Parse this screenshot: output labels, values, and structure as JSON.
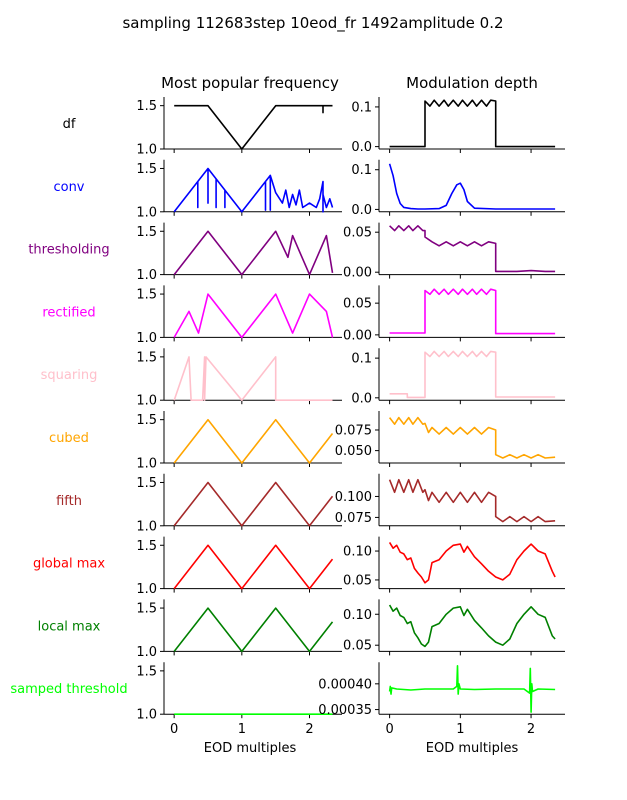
{
  "suptitle": "sampling 112683step 10eod_fr 1492amplitude 0.2",
  "col_titles": [
    "Most popular frequency",
    "Modulation depth"
  ],
  "xlabel": "EOD multiples",
  "chart_data": [
    {
      "type": "line",
      "row_label": "df",
      "color": "#000000",
      "left": {
        "ylim": [
          1.0,
          1.6
        ],
        "yticks": [
          "1.0",
          "1.5"
        ],
        "xlim": [
          -0.15,
          2.48
        ],
        "xticks": [
          "0",
          "1",
          "2"
        ],
        "x": [
          0,
          0.5,
          1.0,
          1.5,
          2.2,
          2.2,
          2.2,
          2.34
        ],
        "y": [
          1.5,
          1.5,
          1.0,
          1.5,
          1.5,
          1.42,
          1.5,
          1.5
        ]
      },
      "right": {
        "ylim": [
          -0.006,
          0.125
        ],
        "yticks": [
          "0.0",
          "0.1"
        ],
        "xlim": [
          -0.15,
          2.48
        ],
        "xticks": [
          "0",
          "1",
          "2"
        ],
        "x": [
          0,
          0.5,
          0.5,
          0.57,
          0.63,
          0.7,
          0.77,
          0.83,
          0.9,
          0.97,
          1.03,
          1.1,
          1.17,
          1.23,
          1.3,
          1.37,
          1.43,
          1.5,
          1.5,
          2.34
        ],
        "y": [
          0,
          0,
          0.115,
          0.102,
          0.117,
          0.102,
          0.117,
          0.102,
          0.117,
          0.102,
          0.117,
          0.102,
          0.117,
          0.102,
          0.117,
          0.102,
          0.117,
          0.115,
          0,
          0
        ]
      }
    },
    {
      "type": "line",
      "row_label": "conv",
      "color": "#0000ff",
      "left": {
        "ylim": [
          1.0,
          1.6
        ],
        "yticks": [
          "1.0",
          "1.5"
        ],
        "xlim": [
          -0.15,
          2.48
        ],
        "xticks": [
          "0",
          "1",
          "2"
        ],
        "x": [
          0,
          0.35,
          0.35,
          0.35,
          0.5,
          0.5,
          0.5,
          0.62,
          0.62,
          0.62,
          0.75,
          0.75,
          0.75,
          1.0,
          1.35,
          1.35,
          1.35,
          1.42,
          1.42,
          1.42,
          1.5,
          1.6,
          1.65,
          1.7,
          1.75,
          1.8,
          1.85,
          1.9,
          2.0,
          2.1,
          2.15,
          2.2,
          2.2,
          2.2,
          2.25,
          2.3,
          2.34
        ],
        "y": [
          1.0,
          1.35,
          1.05,
          1.35,
          1.5,
          1.1,
          1.5,
          1.38,
          1.05,
          1.38,
          1.25,
          1.05,
          1.25,
          1.0,
          1.35,
          1.02,
          1.35,
          1.42,
          1.02,
          1.42,
          1.22,
          1.1,
          1.25,
          1.05,
          1.2,
          1.08,
          1.25,
          1.05,
          1.1,
          1.05,
          1.15,
          1.35,
          1.0,
          1.2,
          1.05,
          1.15,
          1.05
        ]
      },
      "right": {
        "ylim": [
          -0.006,
          0.125
        ],
        "yticks": [
          "0.0",
          "0.1"
        ],
        "xlim": [
          -0.15,
          2.48
        ],
        "xticks": [
          "0",
          "1",
          "2"
        ],
        "x": [
          0,
          0.05,
          0.1,
          0.15,
          0.2,
          0.3,
          0.4,
          0.5,
          0.7,
          0.8,
          0.88,
          0.95,
          1.0,
          1.05,
          1.1,
          1.2,
          1.5,
          2.34
        ],
        "y": [
          0.115,
          0.085,
          0.04,
          0.015,
          0.005,
          0.002,
          0.001,
          0.001,
          0.002,
          0.01,
          0.04,
          0.062,
          0.066,
          0.05,
          0.02,
          0.003,
          0.001,
          0.001
        ]
      }
    },
    {
      "type": "line",
      "row_label": "thresholding",
      "color": "#800080",
      "left": {
        "ylim": [
          1.0,
          1.6
        ],
        "yticks": [
          "1.0",
          "1.5"
        ],
        "xlim": [
          -0.15,
          2.48
        ],
        "xticks": [
          "0",
          "1",
          "2"
        ],
        "x": [
          0,
          0.5,
          1.0,
          1.5,
          1.68,
          1.75,
          2.0,
          2.25,
          2.34
        ],
        "y": [
          1.0,
          1.5,
          1.0,
          1.5,
          1.2,
          1.45,
          1.0,
          1.45,
          1.02
        ]
      },
      "right": {
        "ylim": [
          -0.003,
          0.062
        ],
        "yticks": [
          "0.00",
          "0.05"
        ],
        "xlim": [
          -0.15,
          2.48
        ],
        "xticks": [
          "0",
          "1",
          "2"
        ],
        "x": [
          0,
          0.07,
          0.13,
          0.2,
          0.27,
          0.33,
          0.4,
          0.47,
          0.5,
          0.5,
          0.6,
          0.7,
          0.8,
          0.9,
          1.0,
          1.1,
          1.2,
          1.3,
          1.4,
          1.5,
          1.5,
          1.8,
          2.0,
          2.2,
          2.34
        ],
        "y": [
          0.058,
          0.052,
          0.058,
          0.052,
          0.058,
          0.052,
          0.058,
          0.052,
          0.052,
          0.044,
          0.038,
          0.033,
          0.038,
          0.033,
          0.038,
          0.033,
          0.038,
          0.033,
          0.038,
          0.036,
          0.001,
          0.001,
          0.002,
          0.001,
          0.001
        ]
      }
    },
    {
      "type": "line",
      "row_label": "rectified",
      "color": "#ff00ff",
      "left": {
        "ylim": [
          1.0,
          1.6
        ],
        "yticks": [
          "1.0",
          "1.5"
        ],
        "xlim": [
          -0.15,
          2.48
        ],
        "xticks": [
          "0",
          "1",
          "2"
        ],
        "x": [
          0,
          0.22,
          0.36,
          0.5,
          1.0,
          1.5,
          1.75,
          2.0,
          2.25,
          2.34
        ],
        "y": [
          1.0,
          1.3,
          1.05,
          1.5,
          1.0,
          1.5,
          1.05,
          1.5,
          1.3,
          1.0
        ]
      },
      "right": {
        "ylim": [
          -0.004,
          0.078
        ],
        "yticks": [
          "0.00",
          "0.05"
        ],
        "xlim": [
          -0.15,
          2.48
        ],
        "xticks": [
          "0",
          "1",
          "2"
        ],
        "x": [
          0,
          0.5,
          0.5,
          0.57,
          0.63,
          0.7,
          0.77,
          0.83,
          0.9,
          0.97,
          1.03,
          1.1,
          1.17,
          1.23,
          1.3,
          1.37,
          1.43,
          1.5,
          1.5,
          2.34
        ],
        "y": [
          0.003,
          0.003,
          0.07,
          0.064,
          0.072,
          0.064,
          0.072,
          0.064,
          0.072,
          0.064,
          0.072,
          0.064,
          0.072,
          0.064,
          0.072,
          0.064,
          0.072,
          0.07,
          0.002,
          0.002
        ]
      }
    },
    {
      "type": "line",
      "row_label": "squaring",
      "color": "#ffc0cb",
      "left": {
        "ylim": [
          1.0,
          1.6
        ],
        "yticks": [
          "1.0",
          "1.5"
        ],
        "xlim": [
          -0.15,
          2.48
        ],
        "xticks": [
          "0",
          "1",
          "2"
        ],
        "x": [
          0,
          0.22,
          0.25,
          0.25,
          0.42,
          0.45,
          0.45,
          0.47,
          0.47,
          1.0,
          1.5,
          1.5,
          2.34
        ],
        "y": [
          1.0,
          1.5,
          1.0,
          1.0,
          1.0,
          1.5,
          1.0,
          1.5,
          1.5,
          1.0,
          1.5,
          1.0,
          1.0
        ]
      },
      "right": {
        "ylim": [
          -0.006,
          0.125
        ],
        "yticks": [
          "0.0",
          "0.1"
        ],
        "xlim": [
          -0.15,
          2.48
        ],
        "xticks": [
          "0",
          "1",
          "2"
        ],
        "x": [
          0,
          0.25,
          0.25,
          0.5,
          0.5,
          0.57,
          0.63,
          0.7,
          0.77,
          0.83,
          0.9,
          0.97,
          1.03,
          1.1,
          1.17,
          1.23,
          1.3,
          1.37,
          1.43,
          1.5,
          1.5,
          2.34
        ],
        "y": [
          0.01,
          0.01,
          0.001,
          0.001,
          0.115,
          0.104,
          0.117,
          0.104,
          0.117,
          0.104,
          0.117,
          0.104,
          0.117,
          0.104,
          0.117,
          0.104,
          0.117,
          0.104,
          0.117,
          0.115,
          0.002,
          0.002
        ]
      }
    },
    {
      "type": "line",
      "row_label": "cubed",
      "color": "#ffa500",
      "left": {
        "ylim": [
          1.0,
          1.6
        ],
        "yticks": [
          "1.0",
          "1.5"
        ],
        "xlim": [
          -0.15,
          2.48
        ],
        "xticks": [
          "0",
          "1",
          "2"
        ],
        "x": [
          0,
          0.5,
          1.0,
          1.5,
          2.0,
          2.34
        ],
        "y": [
          1.0,
          1.5,
          1.0,
          1.5,
          1.0,
          1.34
        ]
      },
      "right": {
        "ylim": [
          0.035,
          0.098
        ],
        "yticks": [
          "0.050",
          "0.075"
        ],
        "xlim": [
          -0.15,
          2.48
        ],
        "xticks": [
          "0",
          "1",
          "2"
        ],
        "x": [
          0,
          0.07,
          0.13,
          0.2,
          0.27,
          0.33,
          0.4,
          0.47,
          0.5,
          0.55,
          0.6,
          0.7,
          0.8,
          0.9,
          1.0,
          1.1,
          1.2,
          1.3,
          1.4,
          1.5,
          1.5,
          1.6,
          1.7,
          1.8,
          1.9,
          2.0,
          2.1,
          2.2,
          2.34
        ],
        "y": [
          0.09,
          0.082,
          0.09,
          0.082,
          0.09,
          0.082,
          0.09,
          0.082,
          0.083,
          0.072,
          0.078,
          0.07,
          0.078,
          0.07,
          0.078,
          0.07,
          0.078,
          0.07,
          0.078,
          0.075,
          0.045,
          0.041,
          0.045,
          0.041,
          0.045,
          0.041,
          0.045,
          0.041,
          0.042
        ]
      }
    },
    {
      "type": "line",
      "row_label": "fifth",
      "color": "#a52a2a",
      "left": {
        "ylim": [
          1.0,
          1.6
        ],
        "yticks": [
          "1.0",
          "1.5"
        ],
        "xlim": [
          -0.15,
          2.48
        ],
        "xticks": [
          "0",
          "1",
          "2"
        ],
        "x": [
          0,
          0.5,
          1.0,
          1.5,
          2.0,
          2.34
        ],
        "y": [
          1.0,
          1.5,
          1.0,
          1.5,
          1.0,
          1.34
        ]
      },
      "right": {
        "ylim": [
          0.065,
          0.127
        ],
        "yticks": [
          "0.075",
          "0.100"
        ],
        "xlim": [
          -0.15,
          2.48
        ],
        "xticks": [
          "0",
          "1",
          "2"
        ],
        "x": [
          0,
          0.07,
          0.13,
          0.2,
          0.27,
          0.33,
          0.4,
          0.47,
          0.5,
          0.55,
          0.6,
          0.7,
          0.8,
          0.9,
          1.0,
          1.1,
          1.2,
          1.3,
          1.4,
          1.5,
          1.5,
          1.6,
          1.7,
          1.8,
          1.9,
          2.0,
          2.1,
          2.2,
          2.34
        ],
        "y": [
          0.12,
          0.105,
          0.12,
          0.105,
          0.12,
          0.105,
          0.12,
          0.105,
          0.108,
          0.095,
          0.105,
          0.093,
          0.105,
          0.093,
          0.105,
          0.093,
          0.105,
          0.093,
          0.105,
          0.1,
          0.076,
          0.07,
          0.076,
          0.07,
          0.076,
          0.07,
          0.076,
          0.07,
          0.071
        ]
      }
    },
    {
      "type": "line",
      "row_label": "global max",
      "color": "#ff0000",
      "left": {
        "ylim": [
          1.0,
          1.6
        ],
        "yticks": [
          "1.0",
          "1.5"
        ],
        "xlim": [
          -0.15,
          2.48
        ],
        "xticks": [
          "0",
          "1",
          "2"
        ],
        "x": [
          0,
          0.5,
          1.0,
          1.5,
          2.0,
          2.34
        ],
        "y": [
          1.0,
          1.5,
          1.0,
          1.5,
          1.0,
          1.34
        ]
      },
      "right": {
        "ylim": [
          0.035,
          0.125
        ],
        "yticks": [
          "0.05",
          "0.10"
        ],
        "xlim": [
          -0.15,
          2.48
        ],
        "xticks": [
          "0",
          "1",
          "2"
        ],
        "x": [
          0,
          0.05,
          0.1,
          0.15,
          0.2,
          0.25,
          0.3,
          0.35,
          0.4,
          0.45,
          0.5,
          0.55,
          0.6,
          0.7,
          0.8,
          0.9,
          1.0,
          1.05,
          1.1,
          1.2,
          1.3,
          1.4,
          1.5,
          1.6,
          1.7,
          1.8,
          1.9,
          2.0,
          2.1,
          2.2,
          2.3,
          2.34
        ],
        "y": [
          0.115,
          0.105,
          0.11,
          0.098,
          0.095,
          0.085,
          0.088,
          0.07,
          0.062,
          0.055,
          0.045,
          0.05,
          0.08,
          0.085,
          0.1,
          0.11,
          0.112,
          0.098,
          0.108,
          0.09,
          0.078,
          0.065,
          0.055,
          0.05,
          0.06,
          0.085,
          0.1,
          0.112,
          0.1,
          0.095,
          0.065,
          0.055
        ]
      }
    },
    {
      "type": "line",
      "row_label": "local max",
      "color": "#008000",
      "left": {
        "ylim": [
          1.0,
          1.6
        ],
        "yticks": [
          "1.0",
          "1.5"
        ],
        "xlim": [
          -0.15,
          2.48
        ],
        "xticks": [
          "0",
          "1",
          "2"
        ],
        "x": [
          0,
          0.5,
          1.0,
          1.5,
          2.0,
          2.34
        ],
        "y": [
          1.0,
          1.5,
          1.0,
          1.5,
          1.0,
          1.34
        ]
      },
      "right": {
        "ylim": [
          0.04,
          0.124
        ],
        "yticks": [
          "0.05",
          "0.10"
        ],
        "xlim": [
          -0.15,
          2.48
        ],
        "xticks": [
          "0",
          "1",
          "2"
        ],
        "x": [
          0,
          0.05,
          0.1,
          0.15,
          0.2,
          0.25,
          0.3,
          0.35,
          0.4,
          0.45,
          0.5,
          0.55,
          0.6,
          0.7,
          0.8,
          0.9,
          1.0,
          1.05,
          1.1,
          1.2,
          1.3,
          1.4,
          1.5,
          1.6,
          1.7,
          1.8,
          1.9,
          2.0,
          2.1,
          2.2,
          2.3,
          2.34
        ],
        "y": [
          0.115,
          0.105,
          0.11,
          0.098,
          0.095,
          0.085,
          0.088,
          0.07,
          0.062,
          0.052,
          0.048,
          0.055,
          0.08,
          0.085,
          0.1,
          0.11,
          0.112,
          0.098,
          0.108,
          0.09,
          0.078,
          0.065,
          0.055,
          0.05,
          0.06,
          0.085,
          0.1,
          0.112,
          0.1,
          0.095,
          0.065,
          0.06
        ]
      }
    },
    {
      "type": "line",
      "row_label": "samped threshold",
      "color": "#00ff00",
      "left": {
        "ylim": [
          1.0,
          1.6
        ],
        "yticks": [
          "1.0",
          "1.5"
        ],
        "xlim": [
          -0.15,
          2.48
        ],
        "xticks": [
          "0",
          "1",
          "2"
        ],
        "x": [
          0,
          2.34
        ],
        "y": [
          1.0,
          1.0
        ]
      },
      "right": {
        "ylim": [
          0.000341,
          0.000442
        ],
        "yticks": [
          "0.00035",
          "0.00040"
        ],
        "xlim": [
          -0.15,
          2.48
        ],
        "xticks": [
          "0",
          "1",
          "2"
        ],
        "x": [
          0,
          0.01,
          0.02,
          0.03,
          0.1,
          0.3,
          0.5,
          0.9,
          0.95,
          0.96,
          0.97,
          0.98,
          1.0,
          1.2,
          1.5,
          1.9,
          1.98,
          1.99,
          2.0,
          2.01,
          2.02,
          2.1,
          2.34
        ],
        "y": [
          0.000385,
          0.000395,
          0.00038,
          0.000392,
          0.00039,
          0.000388,
          0.00039,
          0.00039,
          0.000395,
          0.000435,
          0.00038,
          0.0004,
          0.00039,
          0.000389,
          0.00039,
          0.00039,
          0.000382,
          0.00043,
          0.000345,
          0.0004,
          0.000385,
          0.00039,
          0.000389
        ]
      }
    }
  ]
}
